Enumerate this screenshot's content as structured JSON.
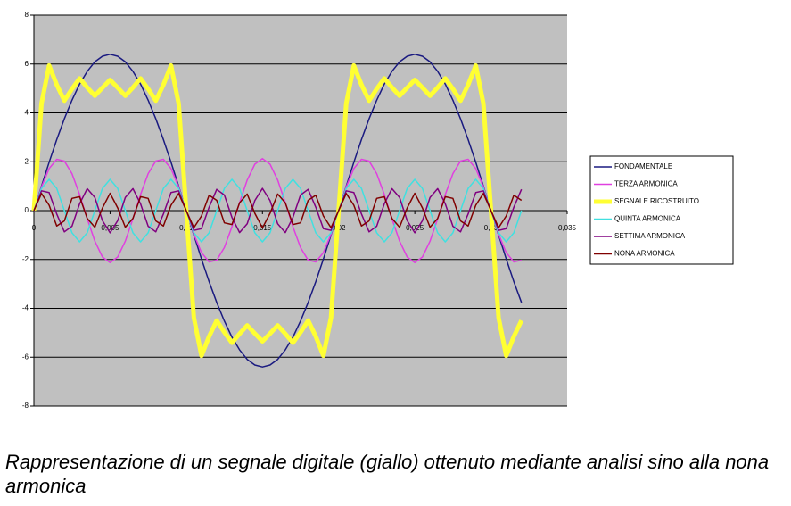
{
  "chart_data": {
    "type": "line",
    "x": [
      0,
      0.0005,
      0.001,
      0.0015,
      0.002,
      0.0025,
      0.003,
      0.0035,
      0.004,
      0.0045,
      0.005,
      0.0055,
      0.006,
      0.0065,
      0.007,
      0.0075,
      0.008,
      0.0085,
      0.009,
      0.0095,
      0.01,
      0.0105,
      0.011,
      0.0115,
      0.012,
      0.0125,
      0.013,
      0.0135,
      0.014,
      0.0145,
      0.015,
      0.0155,
      0.016,
      0.0165,
      0.017,
      0.0175,
      0.018,
      0.0185,
      0.019,
      0.0195,
      0.02,
      0.0205,
      0.021,
      0.0215,
      0.022,
      0.0225,
      0.023,
      0.0235,
      0.024,
      0.0245,
      0.025,
      0.0255,
      0.026,
      0.0265,
      0.027,
      0.0275,
      0.028,
      0.0285,
      0.029,
      0.0295,
      0.03,
      0.0305,
      0.031,
      0.0315,
      0.032
    ],
    "series": [
      {
        "name": "FONDAMENTALE",
        "color": "#1a1a80",
        "width": 1.5,
        "values": [
          0,
          1,
          1.98,
          2.91,
          3.76,
          4.52,
          5.18,
          5.7,
          6.09,
          6.32,
          6.4,
          6.32,
          6.09,
          5.7,
          5.18,
          4.52,
          3.76,
          2.91,
          1.98,
          1,
          0,
          -1,
          -1.98,
          -2.91,
          -3.76,
          -4.52,
          -5.18,
          -5.7,
          -6.09,
          -6.32,
          -6.4,
          -6.32,
          -6.09,
          -5.7,
          -5.18,
          -4.52,
          -3.76,
          -2.91,
          -1.98,
          -1,
          0,
          1,
          1.98,
          2.91,
          3.76,
          4.52,
          5.18,
          5.7,
          6.09,
          6.32,
          6.4,
          6.32,
          6.09,
          5.7,
          5.18,
          4.52,
          3.76,
          2.91,
          1.98,
          1,
          0,
          -1,
          -1.98,
          -2.91,
          -3.76
        ]
      },
      {
        "name": "TERZA ARMONICA",
        "color": "#e040e0",
        "width": 1.5,
        "values": [
          0,
          0.97,
          1.72,
          2.1,
          2.03,
          1.51,
          0.66,
          -0.33,
          -1.25,
          -1.9,
          -2.13,
          -1.9,
          -1.25,
          -0.33,
          0.66,
          1.51,
          2.03,
          2.1,
          1.72,
          0.97,
          0,
          -0.97,
          -1.72,
          -2.1,
          -2.03,
          -1.51,
          -0.66,
          0.33,
          1.25,
          1.9,
          2.13,
          1.9,
          1.25,
          0.33,
          -0.66,
          -1.51,
          -2.03,
          -2.1,
          -1.72,
          -0.97,
          0,
          0.97,
          1.72,
          2.1,
          2.03,
          1.51,
          0.66,
          -0.33,
          -1.25,
          -1.9,
          -2.13,
          -1.9,
          -1.25,
          -0.33,
          0.66,
          1.51,
          2.03,
          2.1,
          1.72,
          0.97,
          0,
          -0.97,
          -1.72,
          -2.1,
          -2.03
        ]
      },
      {
        "name": "SEGNALE RICOSTRUITO",
        "color": "#ffff33",
        "width": 5,
        "values": [
          0,
          4.39,
          5.94,
          5.15,
          4.5,
          4.98,
          5.41,
          5.04,
          4.7,
          5.03,
          5.35,
          5.03,
          4.7,
          5.04,
          5.41,
          4.98,
          4.5,
          5.15,
          5.94,
          4.39,
          0,
          -4.39,
          -5.94,
          -5.15,
          -4.5,
          -4.98,
          -5.41,
          -5.04,
          -4.7,
          -5.03,
          -5.35,
          -5.03,
          -4.7,
          -5.04,
          -5.41,
          -4.98,
          -4.5,
          -5.15,
          -5.94,
          -4.39,
          0,
          4.39,
          5.94,
          5.15,
          4.5,
          4.98,
          5.41,
          5.04,
          4.7,
          5.03,
          5.35,
          5.03,
          4.7,
          5.04,
          5.41,
          4.98,
          4.5,
          5.15,
          5.94,
          4.39,
          0,
          -4.39,
          -5.94,
          -5.15,
          -4.5
        ]
      },
      {
        "name": "QUINTA ARMONICA",
        "color": "#40e0e0",
        "width": 1.5,
        "values": [
          0,
          0.91,
          1.28,
          0.91,
          0,
          -0.91,
          -1.28,
          -0.91,
          0,
          0.91,
          1.28,
          0.91,
          0,
          -0.91,
          -1.28,
          -0.91,
          0,
          0.91,
          1.28,
          0.91,
          0,
          -0.91,
          -1.28,
          -0.91,
          0,
          0.91,
          1.28,
          0.91,
          0,
          -0.91,
          -1.28,
          -0.91,
          0,
          0.91,
          1.28,
          0.91,
          0,
          -0.91,
          -1.28,
          -0.91,
          0,
          0.91,
          1.28,
          0.91,
          0,
          -0.91,
          -1.28,
          -0.91,
          0,
          0.91,
          1.28,
          0.91,
          0,
          -0.91,
          -1.28,
          -0.91,
          0,
          0.91,
          1.28,
          0.91,
          0,
          -0.91,
          -1.28,
          -0.91,
          0
        ]
      },
      {
        "name": "SETTIMA ARMONICA",
        "color": "#800080",
        "width": 1.5,
        "values": [
          0,
          0.81,
          0.74,
          -0.14,
          -0.87,
          -0.64,
          0.28,
          0.9,
          0.54,
          -0.41,
          -0.91,
          -0.41,
          0.54,
          0.9,
          0.28,
          -0.64,
          -0.87,
          -0.14,
          0.74,
          0.81,
          0,
          -0.81,
          -0.74,
          0.14,
          0.87,
          0.64,
          -0.28,
          -0.9,
          -0.54,
          0.41,
          0.91,
          0.41,
          -0.54,
          -0.9,
          -0.28,
          0.64,
          0.87,
          0.14,
          -0.74,
          -0.81,
          0,
          0.81,
          0.74,
          -0.14,
          -0.87,
          -0.64,
          0.28,
          0.9,
          0.54,
          -0.41,
          -0.91,
          -0.41,
          0.54,
          0.9,
          0.28,
          -0.64,
          -0.87,
          -0.14,
          0.74,
          0.81,
          0,
          -0.81,
          -0.74,
          0.14,
          0.87
        ]
      },
      {
        "name": "NONA ARMONICA",
        "color": "#800000",
        "width": 1.5,
        "values": [
          0,
          0.7,
          0.22,
          -0.63,
          -0.42,
          0.5,
          0.57,
          -0.32,
          -0.68,
          0.11,
          0.71,
          0.11,
          -0.68,
          -0.32,
          0.57,
          0.5,
          -0.42,
          -0.63,
          0.22,
          0.7,
          0,
          -0.7,
          -0.22,
          0.63,
          0.42,
          -0.5,
          -0.57,
          0.32,
          0.68,
          -0.11,
          -0.71,
          -0.11,
          0.68,
          0.32,
          -0.57,
          -0.5,
          0.42,
          0.63,
          -0.22,
          -0.7,
          0,
          0.7,
          0.22,
          -0.63,
          -0.42,
          0.5,
          0.57,
          -0.32,
          -0.68,
          0.11,
          0.71,
          0.11,
          -0.68,
          -0.32,
          0.57,
          0.5,
          -0.42,
          -0.63,
          0.22,
          0.7,
          0,
          -0.7,
          -0.22,
          0.63,
          0.42
        ]
      }
    ],
    "xlim": [
      0,
      0.035
    ],
    "xticks": [
      0,
      {
        "value": 0.005,
        "label": "0,005"
      },
      {
        "value": 0.01,
        "label": "0,01"
      },
      {
        "value": 0.015,
        "label": "0,015"
      },
      {
        "value": 0.02,
        "label": "0,02"
      },
      {
        "value": 0.025,
        "label": "0,025"
      },
      {
        "value": 0.03,
        "label": "0,03"
      },
      {
        "value": 0.035,
        "label": "0,035"
      }
    ],
    "ylim": [
      -8,
      8
    ],
    "yticks": [
      -8,
      -6,
      -4,
      -2,
      0,
      2,
      4,
      6,
      8
    ],
    "grid": true,
    "legend": "right",
    "plot_color": "#c0c0c0"
  },
  "caption": "Rappresentazione di un segnale digitale (giallo) ottenuto mediante analisi sino alla nona armonica"
}
